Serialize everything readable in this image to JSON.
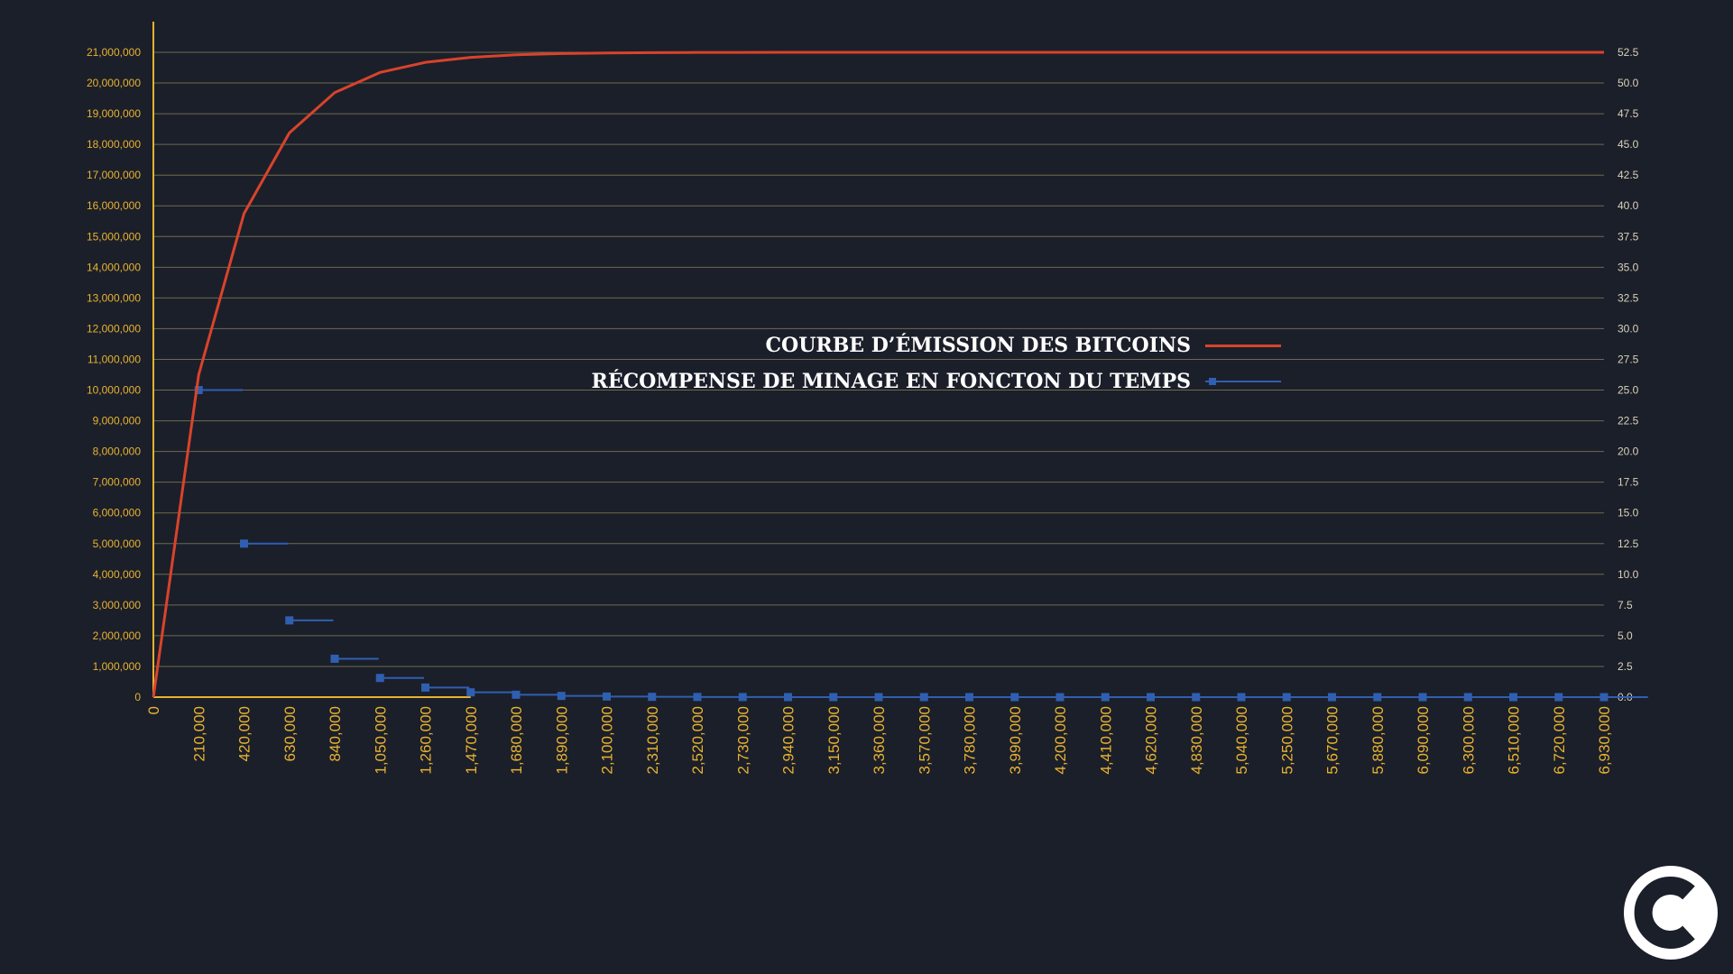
{
  "colors": {
    "background": "#1b1f2a",
    "axis": "#e8b230",
    "grid": "#6e6a4e",
    "emission": "#d9432b",
    "reward": "#2f5fb0",
    "legend_text": "#ffffff"
  },
  "logo": {
    "icon": "coinacademy-c-logo"
  },
  "chart_data": {
    "type": "line",
    "title": "",
    "xlabel": "",
    "ylabel": "",
    "y2label": "",
    "grid": true,
    "legend_position": "center",
    "x_tick_labels": [
      "0",
      "210,000",
      "420,000",
      "630,000",
      "840,000",
      "1,050,000",
      "1,260,000",
      "1,470,000",
      "1,680,000",
      "1,890,000",
      "2,100,000",
      "2,310,000",
      "2,520,000",
      "2,730,000",
      "2,940,000",
      "3,150,000",
      "3,360,000",
      "3,570,000",
      "3,780,000",
      "3,990,000",
      "4,200,000",
      "4,410,000",
      "4,620,000",
      "4,830,000",
      "5,040,000",
      "5,250,000",
      "5,670,000",
      "5,880,000",
      "6,090,000",
      "6,300,000",
      "6,510,000",
      "6,720,000",
      "6,930,000"
    ],
    "y_tick_labels": [
      "0",
      "1,000,000",
      "2,000,000",
      "3,000,000",
      "4,000,000",
      "5,000,000",
      "6,000,000",
      "7,000,000",
      "8,000,000",
      "9,000,000",
      "10,000,000",
      "11,000,000",
      "12,000,000",
      "13,000,000",
      "14,000,000",
      "15,000,000",
      "16,000,000",
      "17,000,000",
      "18,000,000",
      "19,000,000",
      "20,000,000",
      "21,000,000"
    ],
    "y2_tick_labels": [
      "0.0",
      "2.5",
      "5.0",
      "7.5",
      "10.0",
      "12.5",
      "15.0",
      "17.5",
      "20.0",
      "22.5",
      "25.0",
      "27.5",
      "30.0",
      "32.5",
      "35.0",
      "37.5",
      "40.0",
      "42.5",
      "45.0",
      "47.5",
      "50.0",
      "52.5"
    ],
    "ylim": [
      0,
      21000000
    ],
    "y2lim": [
      0,
      52.5
    ],
    "series": [
      {
        "name": "COURBE D’ÉMISSION DES BITCOINS",
        "axis": "left",
        "color": "#d9432b",
        "values": [
          0,
          10500000,
          15750000,
          18375000,
          19687500,
          20343750,
          20671875,
          20835937,
          20917968,
          20958984,
          20979492,
          20989746,
          20994873,
          20997436,
          20998718,
          20999359,
          20999679,
          20999839,
          20999919,
          20999959,
          20999979,
          20999989,
          20999994,
          20999997,
          20999998,
          20999999,
          20999999,
          21000000,
          21000000,
          21000000,
          21000000,
          21000000,
          21000000
        ]
      },
      {
        "name": "RÉCOMPENSE DE MINAGE EN FONCTON DU TEMPS",
        "axis": "right",
        "color": "#2f5fb0",
        "values": [
          null,
          25,
          12.5,
          6.25,
          3.125,
          1.5625,
          0.78125,
          0.390625,
          0.1953125,
          0.09765625,
          0.048828125,
          0.0244140625,
          0.01220703125,
          0.006103515625,
          0.0030517578125,
          0.00152587890625,
          0.000762939453125,
          0.0003814697265625,
          0.00019073486328125,
          9.5367431640625e-05,
          4.76837158203125e-05,
          2.384185791015625e-05,
          1.1920928955078125e-05,
          5.9604644775390625e-06,
          2.9802322387695312e-06,
          1.4901161193847656e-06,
          7.450580596923828e-07,
          3.725290298461914e-07,
          1.862645149230957e-07,
          9.313225746154785e-08,
          4.656612873077393e-08,
          2.328306436538696e-08,
          1.164153218269348e-08
        ]
      }
    ]
  }
}
